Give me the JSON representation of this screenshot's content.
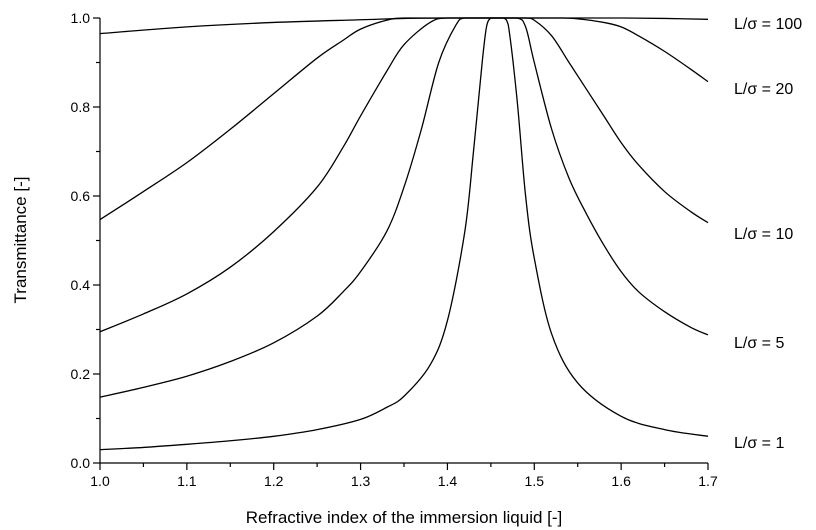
{
  "chart_data": {
    "type": "line",
    "xlabel": "Refractive index of the immersion liquid [-]",
    "ylabel": "Transmittance [-]",
    "xlim": [
      1.0,
      1.7
    ],
    "ylim": [
      0.0,
      1.0
    ],
    "xticks": [
      "1.0",
      "1.1",
      "1.2",
      "1.3",
      "1.4",
      "1.5",
      "1.6",
      "1.7"
    ],
    "yticks": [
      "0.0",
      "0.2",
      "0.4",
      "0.6",
      "0.8",
      "1.0"
    ],
    "grid": false,
    "legend": "inline-right",
    "series": [
      {
        "name": "L/σ = 100",
        "x": [
          1.0,
          1.1,
          1.2,
          1.3,
          1.35,
          1.4,
          1.45,
          1.5,
          1.55,
          1.6,
          1.65,
          1.7
        ],
        "values": [
          0.965,
          0.98,
          0.99,
          0.996,
          0.999,
          1.0,
          1.0,
          1.0,
          1.0,
          1.0,
          0.999,
          0.997
        ]
      },
      {
        "name": "L/σ = 20",
        "x": [
          1.0,
          1.05,
          1.1,
          1.15,
          1.2,
          1.25,
          1.28,
          1.3,
          1.33,
          1.35,
          1.4,
          1.45,
          1.5,
          1.53,
          1.55,
          1.58,
          1.6,
          1.62,
          1.65,
          1.68,
          1.7
        ],
        "values": [
          0.547,
          0.61,
          0.675,
          0.75,
          0.83,
          0.91,
          0.95,
          0.975,
          0.995,
          1.0,
          1.0,
          1.0,
          1.0,
          1.0,
          0.998,
          0.99,
          0.98,
          0.96,
          0.925,
          0.885,
          0.857
        ]
      },
      {
        "name": "L/σ = 10",
        "x": [
          1.0,
          1.05,
          1.1,
          1.15,
          1.2,
          1.25,
          1.28,
          1.3,
          1.33,
          1.35,
          1.38,
          1.4,
          1.45,
          1.49,
          1.5,
          1.52,
          1.54,
          1.56,
          1.58,
          1.6,
          1.62,
          1.65,
          1.68,
          1.7
        ],
        "values": [
          0.295,
          0.335,
          0.38,
          0.44,
          0.52,
          0.62,
          0.71,
          0.78,
          0.88,
          0.94,
          0.99,
          1.0,
          1.0,
          1.0,
          0.995,
          0.96,
          0.9,
          0.84,
          0.78,
          0.72,
          0.67,
          0.61,
          0.565,
          0.54
        ]
      },
      {
        "name": "L/σ = 5",
        "x": [
          1.0,
          1.05,
          1.1,
          1.15,
          1.2,
          1.25,
          1.28,
          1.3,
          1.33,
          1.35,
          1.37,
          1.39,
          1.41,
          1.42,
          1.45,
          1.48,
          1.49,
          1.5,
          1.52,
          1.54,
          1.56,
          1.58,
          1.6,
          1.62,
          1.65,
          1.68,
          1.7
        ],
        "values": [
          0.148,
          0.17,
          0.195,
          0.228,
          0.27,
          0.33,
          0.385,
          0.43,
          0.52,
          0.62,
          0.75,
          0.9,
          0.985,
          1.0,
          1.0,
          1.0,
          0.98,
          0.9,
          0.75,
          0.64,
          0.56,
          0.49,
          0.43,
          0.385,
          0.34,
          0.305,
          0.288
        ]
      },
      {
        "name": "L/σ = 1",
        "x": [
          1.0,
          1.05,
          1.1,
          1.15,
          1.2,
          1.25,
          1.3,
          1.33,
          1.35,
          1.38,
          1.4,
          1.42,
          1.43,
          1.44,
          1.445,
          1.45,
          1.455,
          1.46,
          1.465,
          1.47,
          1.48,
          1.49,
          1.5,
          1.52,
          1.55,
          1.6,
          1.65,
          1.7
        ],
        "values": [
          0.03,
          0.035,
          0.042,
          0.05,
          0.06,
          0.075,
          0.098,
          0.125,
          0.15,
          0.22,
          0.32,
          0.52,
          0.7,
          0.9,
          0.98,
          1.0,
          1.0,
          1.0,
          1.0,
          0.985,
          0.82,
          0.6,
          0.46,
          0.29,
          0.18,
          0.105,
          0.075,
          0.06
        ]
      }
    ],
    "series_labels": [
      "L/σ = 100",
      "L/σ = 20",
      "L/σ = 10",
      "L/σ = 5",
      "L/σ = 1"
    ]
  }
}
